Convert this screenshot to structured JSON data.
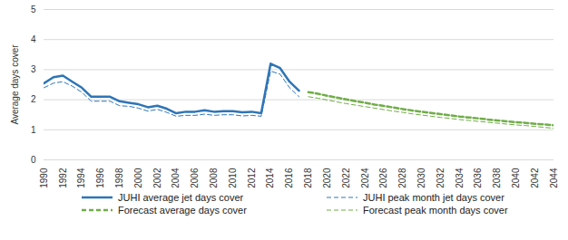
{
  "chart_data": {
    "type": "line",
    "y_label": "Average days cover",
    "x": [
      1990,
      1991,
      1992,
      1993,
      1994,
      1995,
      1996,
      1997,
      1998,
      1999,
      2000,
      2001,
      2002,
      2003,
      2004,
      2005,
      2006,
      2007,
      2008,
      2009,
      2010,
      2011,
      2012,
      2013,
      2014,
      2015,
      2016,
      2017,
      2018,
      2019,
      2020,
      2021,
      2022,
      2023,
      2024,
      2025,
      2026,
      2027,
      2028,
      2029,
      2030,
      2031,
      2032,
      2033,
      2034,
      2035,
      2036,
      2037,
      2038,
      2039,
      2040,
      2041,
      2042,
      2043,
      2044
    ],
    "series": [
      {
        "name": "JUHI average jet days cover",
        "color": "#2e75b6",
        "line_style": "solid",
        "values": [
          2.55,
          2.75,
          2.8,
          2.6,
          2.4,
          2.1,
          2.1,
          2.1,
          1.95,
          1.9,
          1.85,
          1.75,
          1.8,
          1.7,
          1.55,
          1.6,
          1.6,
          1.65,
          1.6,
          1.62,
          1.62,
          1.58,
          1.6,
          1.55,
          3.2,
          3.05,
          2.6,
          2.3,
          null,
          null,
          null,
          null,
          null,
          null,
          null,
          null,
          null,
          null,
          null,
          null,
          null,
          null,
          null,
          null,
          null,
          null,
          null,
          null,
          null,
          null,
          null,
          null,
          null,
          null,
          null
        ]
      },
      {
        "name": "JUHI peak month jet days cover",
        "color": "#2e75b6",
        "line_style": "dashed",
        "values": [
          2.4,
          2.55,
          2.6,
          2.45,
          2.25,
          1.95,
          1.95,
          1.95,
          1.8,
          1.78,
          1.72,
          1.62,
          1.68,
          1.58,
          1.45,
          1.48,
          1.48,
          1.52,
          1.48,
          1.5,
          1.5,
          1.46,
          1.48,
          1.45,
          2.95,
          2.85,
          2.4,
          2.1,
          null,
          null,
          null,
          null,
          null,
          null,
          null,
          null,
          null,
          null,
          null,
          null,
          null,
          null,
          null,
          null,
          null,
          null,
          null,
          null,
          null,
          null,
          null,
          null,
          null,
          null,
          null
        ]
      },
      {
        "name": "Forecast average days cover",
        "color": "#70ad47",
        "line_style": "dashed",
        "values": [
          null,
          null,
          null,
          null,
          null,
          null,
          null,
          null,
          null,
          null,
          null,
          null,
          null,
          null,
          null,
          null,
          null,
          null,
          null,
          null,
          null,
          null,
          null,
          null,
          null,
          null,
          null,
          null,
          2.25,
          2.2,
          2.13,
          2.07,
          2.01,
          1.95,
          1.9,
          1.84,
          1.79,
          1.74,
          1.69,
          1.64,
          1.6,
          1.56,
          1.52,
          1.48,
          1.44,
          1.41,
          1.38,
          1.34,
          1.31,
          1.28,
          1.25,
          1.23,
          1.2,
          1.18,
          1.15
        ]
      },
      {
        "name": "Forecast peak month days cover",
        "color": "#70ad47",
        "line_style": "dashed",
        "values": [
          null,
          null,
          null,
          null,
          null,
          null,
          null,
          null,
          null,
          null,
          null,
          null,
          null,
          null,
          null,
          null,
          null,
          null,
          null,
          null,
          null,
          null,
          null,
          null,
          null,
          null,
          null,
          null,
          2.1,
          2.05,
          1.99,
          1.93,
          1.87,
          1.82,
          1.77,
          1.72,
          1.67,
          1.62,
          1.58,
          1.53,
          1.49,
          1.45,
          1.41,
          1.38,
          1.34,
          1.31,
          1.28,
          1.25,
          1.22,
          1.19,
          1.16,
          1.14,
          1.11,
          1.08,
          1.05
        ]
      }
    ],
    "xlim": [
      1990,
      2044
    ],
    "xticks": [
      1990,
      1992,
      1994,
      1996,
      1998,
      2000,
      2002,
      2004,
      2006,
      2008,
      2010,
      2012,
      2014,
      2016,
      2018,
      2020,
      2022,
      2024,
      2026,
      2028,
      2030,
      2032,
      2034,
      2036,
      2038,
      2040,
      2042,
      2044
    ],
    "ylim": [
      0,
      5
    ],
    "yticks": [
      0,
      1,
      2,
      3,
      4,
      5
    ],
    "grid": true,
    "legend": "bottom"
  }
}
